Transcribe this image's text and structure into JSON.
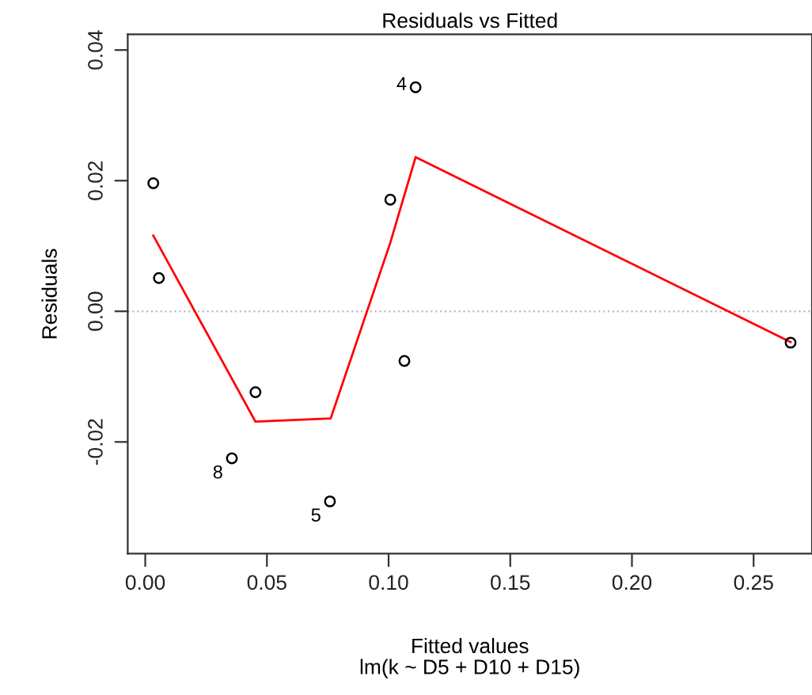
{
  "chart_data": {
    "type": "scatter",
    "title": "Residuals vs Fitted",
    "xlabel": "Fitted values",
    "subtitle": "lm(k ~ D5 + D10 + D15)",
    "ylabel": "Residuals",
    "series": [
      {
        "color": "#000000",
        "marker": "circle",
        "x": [
          0.0033,
          0.0056,
          0.0356,
          0.0453,
          0.0759,
          0.1007,
          0.1065,
          0.1111,
          0.2652
        ],
        "values": [
          0.0196,
          0.0051,
          -0.0225,
          -0.0124,
          -0.0291,
          0.0171,
          -0.0076,
          0.0343,
          -0.0048
        ]
      },
      {
        "type": "line",
        "color": "#ff0000",
        "x": [
          0.0033,
          0.0453,
          0.0762,
          0.1007,
          0.1111,
          0.2652
        ],
        "values": [
          0.0116,
          -0.0169,
          -0.0164,
          0.0105,
          0.0236,
          -0.0047
        ]
      }
    ],
    "annotations": [
      {
        "text": "4",
        "x": 0.1111,
        "y": 0.0343
      },
      {
        "text": "8",
        "x": 0.0356,
        "y": -0.0225
      },
      {
        "text": "5",
        "x": 0.0759,
        "y": -0.0291
      }
    ],
    "ref_lines": [
      {
        "axis": "y",
        "value": 0,
        "color": "#bbbbbb",
        "line_style": "dotted"
      }
    ],
    "xlim": [
      -0.0072,
      0.274
    ],
    "ylim": [
      -0.0371,
      0.0424
    ],
    "xticks": [
      {
        "value": 0,
        "label": "0.00"
      },
      0.05,
      {
        "value": 0.1,
        "label": "0.10"
      },
      0.15,
      {
        "value": 0.2,
        "label": "0.20"
      },
      0.25
    ],
    "yticks": [
      {
        "value": -0.02,
        "label": "-0.02"
      },
      {
        "value": 0,
        "label": "0.00"
      },
      0.02,
      0.04
    ],
    "grid": false
  }
}
